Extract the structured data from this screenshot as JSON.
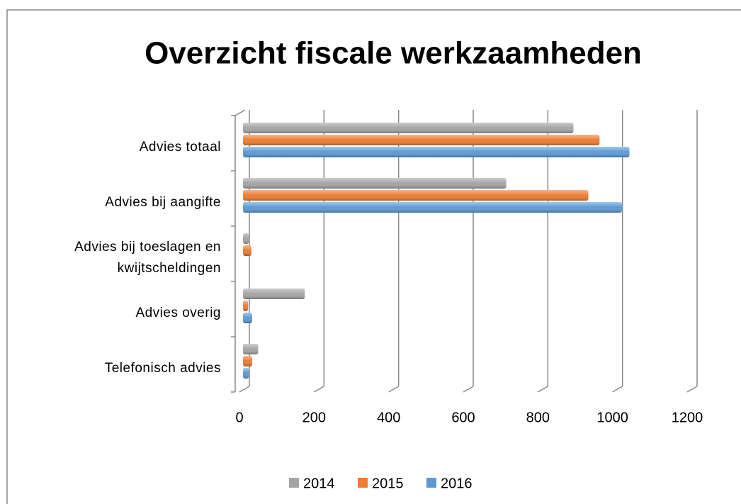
{
  "chart_data": {
    "type": "bar",
    "orientation": "horizontal",
    "title": "Overzicht fiscale werkzaamheden",
    "categories": [
      "Advies totaal",
      "Advies bij aangifte",
      "Advies bij toeslagen en kwijtscheldingen",
      "Advies overig",
      "Telefonisch advies"
    ],
    "series": [
      {
        "name": "2014",
        "color": "#a5a5a5",
        "values": [
          880,
          700,
          10,
          160,
          35
        ]
      },
      {
        "name": "2015",
        "color": "#ed7d31",
        "values": [
          950,
          920,
          17,
          8,
          19
        ]
      },
      {
        "name": "2016",
        "color": "#5b9bd5",
        "values": [
          1030,
          1010,
          0,
          19,
          10
        ]
      }
    ],
    "xlim": [
      0,
      1200
    ],
    "xticks": [
      0,
      200,
      400,
      600,
      800,
      1000,
      1200
    ],
    "grid": true,
    "legend": "bottom"
  }
}
